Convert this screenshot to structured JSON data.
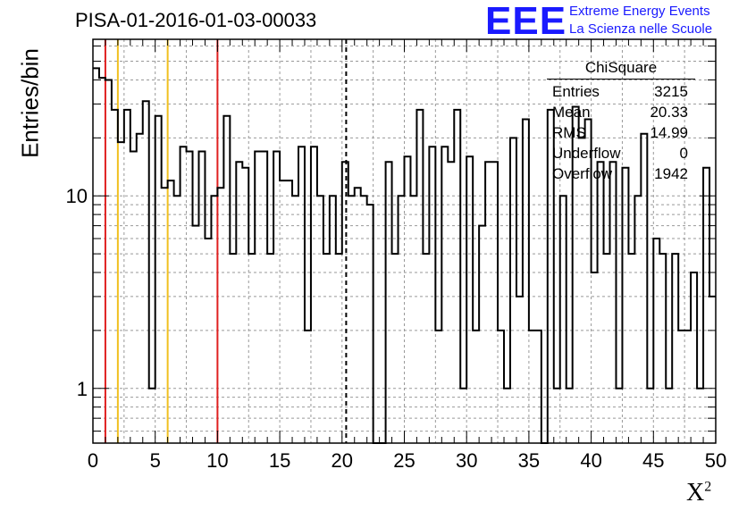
{
  "header": {
    "title": "PISA-01-2016-01-03-00033",
    "logo_text": "EEE",
    "tagline1": "Extreme Energy Events",
    "tagline2": "La Scienza nelle Scuole"
  },
  "stats": {
    "name": "ChiSquare",
    "rows": [
      {
        "label": "Entries",
        "value": "3215"
      },
      {
        "label": "Mean",
        "value": "20.33"
      },
      {
        "label": "RMS",
        "value": "14.99"
      },
      {
        "label": "Underflow",
        "value": "0"
      },
      {
        "label": "Overflow",
        "value": "1942"
      }
    ]
  },
  "chart_data": {
    "type": "histogram",
    "title": "PISA-01-2016-01-03-00033",
    "xlabel": "X",
    "xlabel_sup": "2",
    "ylabel": "Entries/bin",
    "xlim": [
      0,
      50
    ],
    "ylim": [
      0.52,
      65
    ],
    "yscale": "log",
    "grid": true,
    "bin_width": 0.5,
    "x_ticks": [
      0,
      5,
      10,
      15,
      20,
      25,
      30,
      35,
      40,
      45,
      50
    ],
    "y_ticks": [
      1,
      10
    ],
    "values": [
      46,
      41,
      40,
      28,
      19,
      28,
      17,
      21,
      31,
      1,
      26,
      11,
      12,
      10,
      18,
      17,
      7,
      17,
      6,
      10,
      11,
      26,
      5,
      15,
      14,
      5,
      17,
      17,
      5,
      17,
      12,
      12,
      10,
      18,
      2,
      18,
      10,
      5,
      10,
      5,
      15,
      10,
      11,
      10,
      9,
      0,
      0,
      15,
      5,
      10,
      16,
      10,
      28,
      5,
      18,
      2,
      18,
      15,
      28,
      1,
      16,
      2,
      7,
      15,
      15,
      2,
      1,
      20,
      3,
      25,
      2,
      2,
      0,
      28,
      1,
      10,
      1,
      29,
      20,
      25,
      4,
      15,
      5,
      15,
      1,
      14,
      5,
      10,
      21,
      1,
      6,
      5,
      1,
      5,
      2,
      2,
      4,
      1,
      14,
      3
    ],
    "markers": [
      {
        "x": 1,
        "color": "#e02020",
        "style": "solid"
      },
      {
        "x": 2,
        "color": "#f0c020",
        "style": "solid"
      },
      {
        "x": 6,
        "color": "#f0c020",
        "style": "solid"
      },
      {
        "x": 10,
        "color": "#e02020",
        "style": "solid"
      },
      {
        "x": 20.33,
        "color": "#000000",
        "style": "dashed"
      }
    ]
  }
}
